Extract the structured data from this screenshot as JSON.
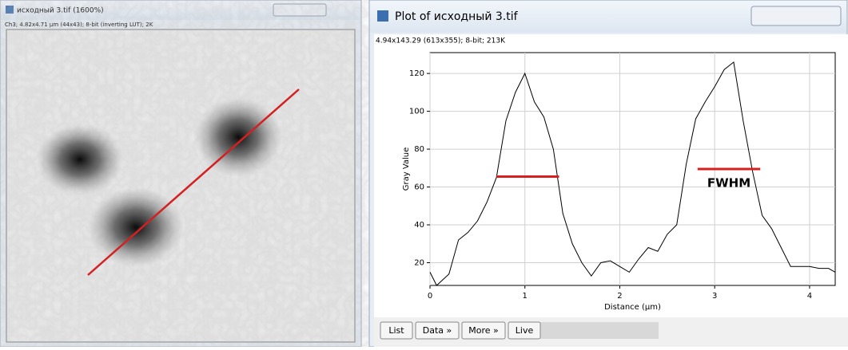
{
  "image_window": {
    "title": "исходный 3.tif (1600%)",
    "info": "Ch3; 4.82x4.71 µm (44x43); 8-bit (inverting LUT); 2K"
  },
  "plot_window": {
    "title": "Plot of исходный 3.tif",
    "info": "4.94x143.29  (613x355); 8-bit; 213K",
    "buttons": [
      "List",
      "Data »",
      "More »",
      "Live"
    ]
  },
  "chart_data": {
    "type": "line",
    "x_label": "Distance (µm)",
    "y_label": "Gray Value",
    "color": "#000000",
    "grid": true,
    "x": [
      0,
      0.07,
      0.2,
      0.3,
      0.4,
      0.5,
      0.6,
      0.7,
      0.8,
      0.9,
      1.0,
      1.1,
      1.2,
      1.3,
      1.4,
      1.5,
      1.6,
      1.7,
      1.8,
      1.9,
      2.0,
      2.1,
      2.2,
      2.3,
      2.4,
      2.5,
      2.6,
      2.7,
      2.8,
      2.9,
      3.0,
      3.1,
      3.2,
      3.3,
      3.4,
      3.5,
      3.6,
      3.7,
      3.8,
      3.9,
      4.0,
      4.1,
      4.2,
      4.27
    ],
    "values": [
      15,
      8,
      14,
      32,
      36,
      42,
      52,
      65,
      95,
      110,
      120,
      105,
      97,
      80,
      46,
      30,
      20,
      13,
      20,
      21,
      18,
      15,
      22,
      28,
      26,
      35,
      40,
      72,
      96,
      105,
      113,
      122,
      126,
      95,
      68,
      45,
      38,
      28,
      18,
      18,
      18,
      17,
      17,
      15
    ],
    "xlim": [
      0,
      4.27
    ],
    "ylim": [
      8,
      131
    ],
    "xticks": [
      0,
      1,
      2,
      3,
      4
    ],
    "yticks": [
      20,
      40,
      60,
      80,
      100,
      120
    ],
    "annotation": {
      "text": "FWHM",
      "color": "#d62020",
      "segments": [
        {
          "x": [
            0.7,
            1.36
          ],
          "y": 65.5
        },
        {
          "x": [
            2.82,
            3.48
          ],
          "y": 69.5
        }
      ]
    }
  }
}
